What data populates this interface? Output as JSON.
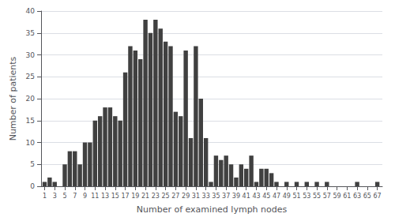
{
  "chart_data": {
    "type": "bar",
    "x": [
      1,
      2,
      3,
      4,
      5,
      6,
      7,
      8,
      9,
      10,
      11,
      12,
      13,
      14,
      15,
      16,
      17,
      18,
      19,
      20,
      21,
      22,
      23,
      24,
      25,
      26,
      27,
      28,
      29,
      30,
      31,
      32,
      33,
      34,
      35,
      36,
      37,
      38,
      39,
      40,
      41,
      42,
      43,
      44,
      45,
      46,
      47,
      48,
      49,
      50,
      51,
      52,
      53,
      54,
      55,
      56,
      57,
      58,
      59,
      60,
      61,
      62,
      63,
      64,
      65,
      66,
      67
    ],
    "values": [
      1,
      2,
      1,
      0,
      5,
      8,
      8,
      5,
      10,
      10,
      15,
      16,
      18,
      18,
      16,
      15,
      26,
      32,
      31,
      29,
      38,
      35,
      38,
      36,
      33,
      32,
      17,
      16,
      31,
      11,
      32,
      20,
      11,
      1,
      7,
      6,
      7,
      5,
      2,
      5,
      4,
      7,
      1,
      4,
      4,
      3,
      1,
      0,
      1,
      0,
      1,
      0,
      1,
      0,
      1,
      0,
      1,
      0,
      0,
      0,
      0,
      0,
      1,
      0,
      0,
      0,
      1
    ],
    "color": "#404040",
    "xlabel": "Number of examined lymph nodes",
    "ylabel": "Number of patients",
    "xlim": [
      0.3,
      68
    ],
    "xticks": [
      1,
      3,
      5,
      7,
      9,
      11,
      13,
      15,
      17,
      19,
      21,
      23,
      25,
      27,
      29,
      31,
      33,
      35,
      37,
      39,
      41,
      43,
      45,
      47,
      49,
      51,
      53,
      55,
      57,
      59,
      61,
      63,
      65,
      67
    ],
    "ylim": [
      0,
      40
    ],
    "yticks": [
      0,
      5,
      10,
      15,
      20,
      25,
      30,
      35,
      40
    ],
    "grid": true
  }
}
